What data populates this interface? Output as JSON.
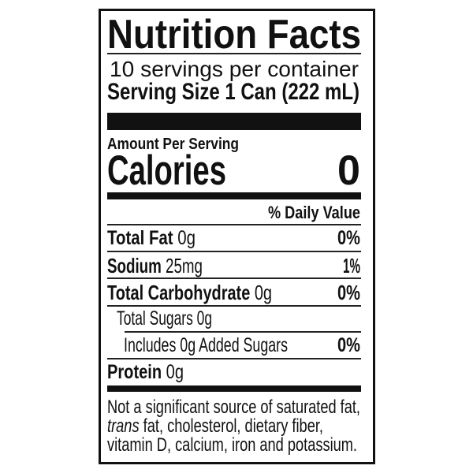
{
  "title": "Nutrition Facts",
  "servings_per_container": "10 servings per container",
  "serving_size": "Serving Size 1 Can (222 mL)",
  "amount_per_serving": "Amount Per Serving",
  "calories": {
    "label": "Calories",
    "value": "0"
  },
  "daily_value_header": "% Daily Value",
  "nutrients": [
    {
      "name": "Total Fat",
      "amount": "0g",
      "dv": "0%"
    },
    {
      "name": "Sodium",
      "amount": "25mg",
      "dv": "1%"
    },
    {
      "name": "Total Carbohydrate",
      "amount": "0g",
      "dv": "0%"
    },
    {
      "name": "Total Sugars 0g",
      "amount": "",
      "dv": ""
    },
    {
      "name": "Includes 0g Added Sugars",
      "amount": "",
      "dv": "0%"
    },
    {
      "name": "Protein",
      "amount": "0g",
      "dv": ""
    }
  ],
  "footnote": {
    "line1": "Not a significant source of saturated fat,",
    "line2_italic": "trans",
    "line2_rest": " fat, cholesterol, dietary fiber,",
    "line3": "vitamin D, calcium, iron and potassium."
  }
}
